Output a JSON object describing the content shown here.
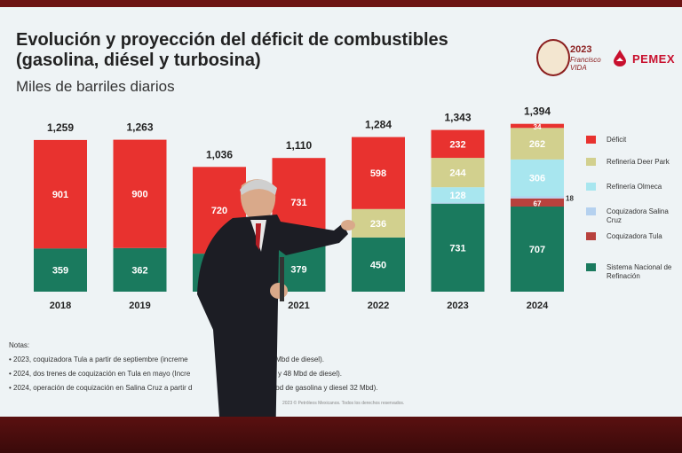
{
  "slide": {
    "title": "Evolución y proyección del déficit de combustibles (gasolina, diésel y turbosina)",
    "subtitle": "Miles de barriles diarios",
    "logo_vida": {
      "year": "2023",
      "name": "Francisco VIDA"
    },
    "logo_pemex": {
      "word": "PEMEX"
    },
    "notes_heading": "Notas:",
    "notes": [
      "2023, coquizadora Tula a partir de septiembre (increme",
      "2024, dos trenes de coquización en Tula en mayo (Incre",
      "2024, operación de coquización en Salina Cruz a partir d"
    ],
    "notes_tail": [
      "4 Mbd de diesel).",
      "a y 48 Mbd de diesel).",
      "39 Mbd de gasolina y diesel 32 Mbd)."
    ],
    "footer": "2023 © Petróleos Mexicanos. Todos los derechos reservados."
  },
  "colors": {
    "deficit": "#e8322f",
    "deer_park": "#d2d08e",
    "olmeca": "#a8e6ef",
    "salina_cruz": "#b5d1ef",
    "tula": "#b8413d",
    "snr": "#1a7a5e"
  },
  "chart_data": {
    "type": "bar",
    "stacked": true,
    "categories": [
      "2018",
      "2019",
      "2020",
      "2021",
      "2022",
      "2023",
      "2024"
    ],
    "totals": [
      "1,259",
      "1,263",
      "1,036",
      "1,110",
      "1,284",
      "1,343",
      "1,394"
    ],
    "total_values": [
      1259,
      1263,
      1036,
      1110,
      1284,
      1343,
      1394
    ],
    "series": [
      {
        "name": "Sistema Nacional de Refinación",
        "key": "snr",
        "values": [
          359,
          362,
          316,
          379,
          450,
          731,
          707
        ],
        "labels": [
          "359",
          "362",
          "",
          "379",
          "450",
          "731",
          "707"
        ]
      },
      {
        "name": "Coquizadora Tula",
        "key": "tula",
        "values": [
          0,
          0,
          0,
          0,
          0,
          0,
          67
        ],
        "labels": [
          "",
          "",
          "",
          "",
          "",
          "",
          "67"
        ]
      },
      {
        "name": "Coquizadora Salina Cruz",
        "key": "salina_cruz",
        "values": [
          0,
          0,
          0,
          0,
          0,
          8,
          18
        ],
        "labels": [
          "",
          "",
          "",
          "",
          "",
          "",
          "18"
        ]
      },
      {
        "name": "Refinería Olmeca",
        "key": "olmeca",
        "values": [
          0,
          0,
          0,
          0,
          0,
          128,
          306
        ],
        "labels": [
          "",
          "",
          "",
          "",
          "",
          "128",
          "306"
        ]
      },
      {
        "name": "Refinería Deer Park",
        "key": "deer_park",
        "values": [
          0,
          0,
          0,
          0,
          236,
          244,
          262
        ],
        "labels": [
          "",
          "",
          "",
          "",
          "236",
          "244",
          "262"
        ]
      },
      {
        "name": "Déficit",
        "key": "deficit",
        "values": [
          901,
          900,
          720,
          731,
          598,
          232,
          34
        ],
        "labels": [
          "901",
          "900",
          "720",
          "731",
          "598",
          "232",
          "34"
        ]
      }
    ],
    "legend": [
      "Déficit",
      "Refinería Deer Park",
      "Refinería Olmeca",
      "Coquizadora Salina Cruz",
      "Coquizadora Tula",
      "Sistema Nacional de Refinación"
    ],
    "legend_keys": [
      "deficit",
      "deer_park",
      "olmeca",
      "salina_cruz",
      "tula",
      "snr"
    ],
    "legend_position": "right",
    "grid": false
  }
}
